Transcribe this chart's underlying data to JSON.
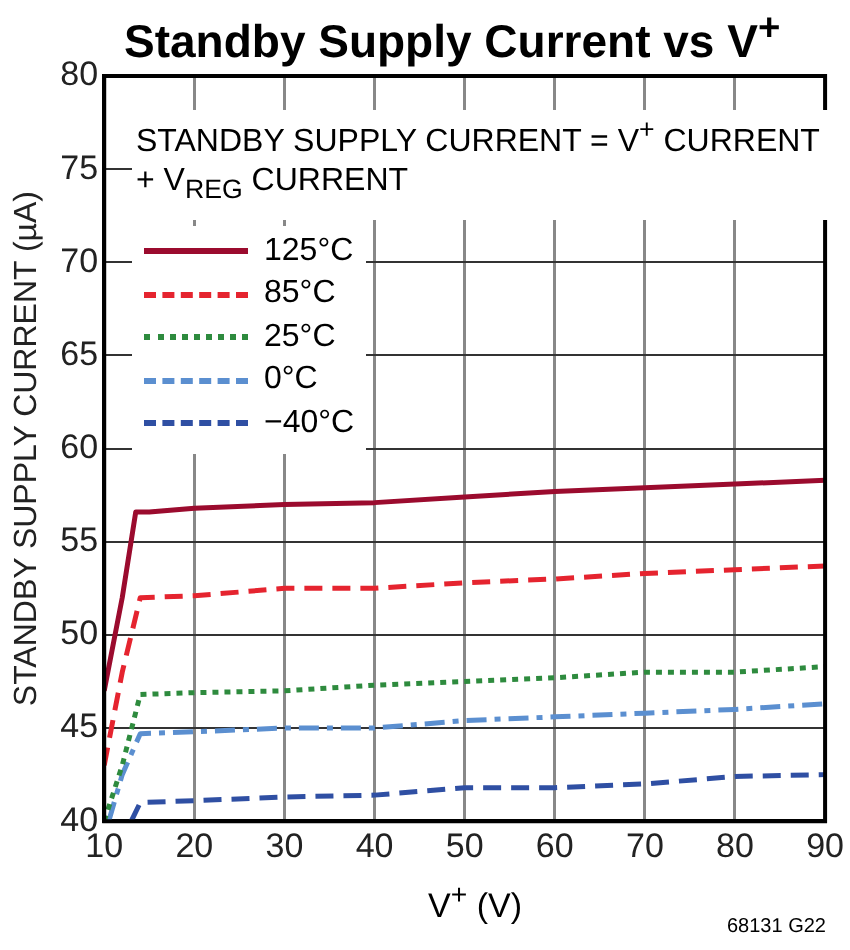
{
  "chart_data": {
    "type": "line",
    "title": "Standby Supply Current vs V$^{+}$",
    "xlabel": "V$^{+}$ (V)",
    "ylabel": "STANDBY SUPPLY CURRENT (µA)",
    "annotations": [
      "STANDBY SUPPLY CURRENT = V$^{+}$ CURRENT + V$_{REG}$ CURRENT",
      "68131 G22"
    ],
    "xlim": [
      10,
      90
    ],
    "xticks": [
      10,
      20,
      30,
      40,
      50,
      60,
      70,
      80,
      90
    ],
    "ylim": [
      40,
      80
    ],
    "yticks": [
      40,
      45,
      50,
      55,
      60,
      65,
      70,
      75,
      80
    ],
    "grid": true,
    "legend": "top left",
    "marker": "none",
    "series": [
      {
        "name": "125°C",
        "color": "#9b0b2e",
        "line_style": "solid",
        "x": [
          10,
          12,
          13.5,
          15,
          20,
          30,
          40,
          50,
          60,
          70,
          80,
          90
        ],
        "values": [
          47,
          52,
          56.6,
          56.6,
          56.8,
          57.0,
          57.1,
          57.4,
          57.7,
          57.9,
          58.1,
          58.3
        ]
      },
      {
        "name": "85°C",
        "color": "#e5242f",
        "line_style": "dashed",
        "x": [
          10,
          12,
          14,
          20,
          30,
          40,
          50,
          60,
          70,
          80,
          90
        ],
        "values": [
          43,
          48,
          52,
          52.1,
          52.5,
          52.5,
          52.8,
          53.0,
          53.3,
          53.5,
          53.7
        ]
      },
      {
        "name": "25°C",
        "color": "#2e8b3e",
        "line_style": "dotted",
        "x": [
          10,
          12,
          14,
          20,
          30,
          40,
          50,
          60,
          70,
          80,
          90
        ],
        "values": [
          40,
          43,
          46.8,
          46.9,
          47.0,
          47.3,
          47.5,
          47.7,
          48.0,
          48.0,
          48.3
        ]
      },
      {
        "name": "0°C",
        "color": "#5b8fd0",
        "line_style": "dashdot",
        "x": [
          10.5,
          12,
          14,
          20,
          30,
          40,
          50,
          60,
          70,
          80,
          90
        ],
        "values": [
          40,
          42.5,
          44.7,
          44.8,
          45.0,
          45.0,
          45.4,
          45.6,
          45.8,
          46.0,
          46.3
        ]
      },
      {
        "name": "−40°C",
        "color": "#2f4fa3",
        "line_style": "dashed",
        "x": [
          13,
          14,
          20,
          30,
          40,
          50,
          60,
          70,
          80,
          90
        ],
        "values": [
          40,
          41,
          41.1,
          41.3,
          41.4,
          41.8,
          41.8,
          42.0,
          42.4,
          42.5
        ]
      }
    ]
  }
}
